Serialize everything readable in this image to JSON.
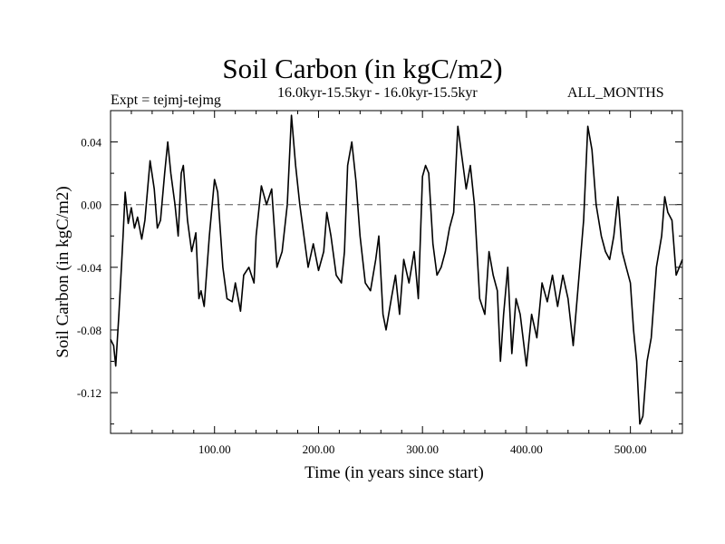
{
  "chart_data": {
    "type": "line",
    "title": "Soil Carbon (in kgC/m2)",
    "subtitle": "16.0kyr-15.5kyr - 16.0kyr-15.5kyr",
    "experiment_label": "Expt = tejmj-tejmg",
    "period_label": "ALL_MONTHS",
    "xlabel": "Time (in years since start)",
    "ylabel": "Soil Carbon (in kgC/m2)",
    "xlim": [
      0,
      550
    ],
    "ylim": [
      -0.146,
      0.06
    ],
    "x_ticks": [
      100,
      200,
      300,
      400,
      500
    ],
    "x_tick_labels": [
      "100.00",
      "200.00",
      "300.00",
      "400.00",
      "500.00"
    ],
    "y_ticks": [
      0.04,
      0.0,
      -0.04,
      -0.08,
      -0.12
    ],
    "y_tick_labels": [
      "0.04",
      "0.00",
      "-0.04",
      "-0.08",
      "-0.12"
    ],
    "reference_line": 0.0,
    "grid": false,
    "series": [
      {
        "x": [
          0,
          3,
          5,
          8,
          12,
          14,
          17,
          20,
          23,
          26,
          30,
          33,
          38,
          42,
          45,
          48,
          52,
          55,
          58,
          62,
          65,
          68,
          70,
          74,
          78,
          82,
          85,
          87,
          90,
          95,
          100,
          103,
          108,
          112,
          117,
          120,
          125,
          128,
          133,
          138,
          140,
          145,
          150,
          155,
          160,
          165,
          170,
          174,
          178,
          182,
          186,
          190,
          195,
          200,
          205,
          208,
          212,
          217,
          222,
          225,
          228,
          232,
          236,
          240,
          245,
          250,
          255,
          258,
          262,
          265,
          270,
          274,
          278,
          282,
          287,
          292,
          296,
          300,
          303,
          306,
          310,
          314,
          318,
          322,
          326,
          330,
          334,
          338,
          342,
          346,
          350,
          355,
          360,
          364,
          368,
          372,
          375,
          378,
          382,
          386,
          390,
          394,
          400,
          405,
          410,
          415,
          420,
          425,
          430,
          435,
          440,
          445,
          450,
          455,
          459,
          463,
          467,
          472,
          476,
          480,
          484,
          488,
          492,
          496,
          500,
          503,
          506,
          509,
          512,
          516,
          520,
          525,
          530,
          533,
          536,
          540,
          544,
          550
        ],
        "y": [
          -0.086,
          -0.09,
          -0.103,
          -0.07,
          -0.02,
          0.008,
          -0.012,
          -0.002,
          -0.015,
          -0.008,
          -0.022,
          -0.01,
          0.028,
          0.01,
          -0.015,
          -0.01,
          0.02,
          0.04,
          0.02,
          0.0,
          -0.02,
          0.02,
          0.025,
          -0.01,
          -0.03,
          -0.018,
          -0.06,
          -0.055,
          -0.065,
          -0.02,
          0.016,
          0.008,
          -0.04,
          -0.06,
          -0.062,
          -0.05,
          -0.068,
          -0.045,
          -0.04,
          -0.05,
          -0.02,
          0.012,
          0.0,
          0.01,
          -0.04,
          -0.03,
          0.0,
          0.057,
          0.025,
          0.0,
          -0.02,
          -0.04,
          -0.025,
          -0.042,
          -0.03,
          -0.005,
          -0.02,
          -0.045,
          -0.05,
          -0.03,
          0.025,
          0.04,
          0.015,
          -0.02,
          -0.05,
          -0.055,
          -0.035,
          -0.02,
          -0.07,
          -0.08,
          -0.06,
          -0.045,
          -0.07,
          -0.035,
          -0.05,
          -0.03,
          -0.06,
          0.018,
          0.025,
          0.02,
          -0.025,
          -0.045,
          -0.04,
          -0.03,
          -0.015,
          -0.005,
          0.05,
          0.03,
          0.01,
          0.025,
          0.0,
          -0.06,
          -0.07,
          -0.03,
          -0.045,
          -0.055,
          -0.1,
          -0.07,
          -0.04,
          -0.095,
          -0.06,
          -0.07,
          -0.103,
          -0.07,
          -0.085,
          -0.05,
          -0.062,
          -0.045,
          -0.065,
          -0.045,
          -0.06,
          -0.09,
          -0.05,
          -0.01,
          0.05,
          0.035,
          0.0,
          -0.02,
          -0.03,
          -0.035,
          -0.02,
          0.005,
          -0.03,
          -0.04,
          -0.05,
          -0.08,
          -0.1,
          -0.14,
          -0.135,
          -0.1,
          -0.085,
          -0.04,
          -0.02,
          0.005,
          -0.005,
          -0.01,
          -0.045,
          -0.035
        ]
      }
    ]
  }
}
